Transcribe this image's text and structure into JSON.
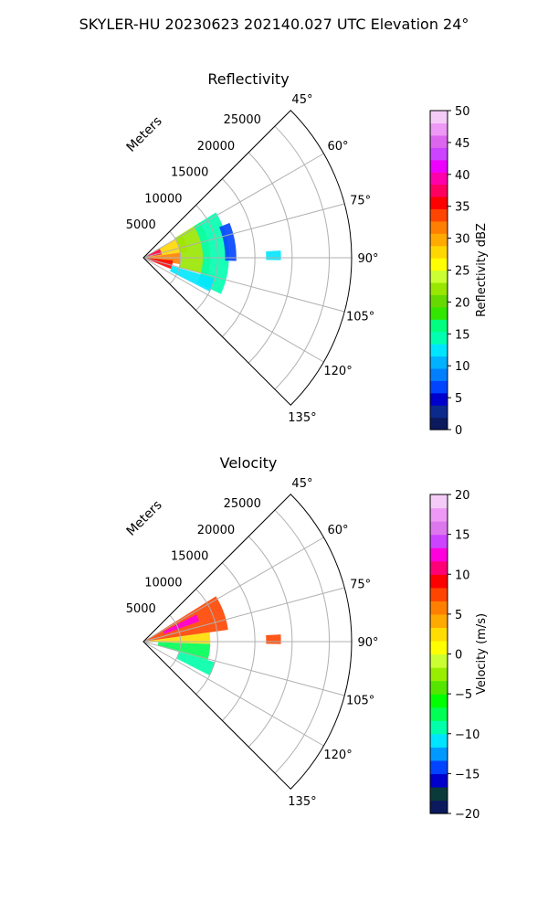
{
  "figure": {
    "title": "SKYLER-HU  20230623  202140.027 UTC Elevation 24°"
  },
  "chart_data": [
    {
      "type": "heatmap",
      "projection": "polar-sector",
      "title": "Reflectivity",
      "range_label": "Meters",
      "range_ticks": [
        5000,
        10000,
        15000,
        20000,
        25000
      ],
      "range_tick_labels": [
        "5000",
        "10000",
        "15000",
        "20000",
        "25000"
      ],
      "range_max": 28000,
      "azimuth_range_deg": [
        45,
        135
      ],
      "azimuth_ticks": [
        45,
        60,
        75,
        90,
        105,
        120,
        135
      ],
      "azimuth_tick_labels": [
        "45°",
        "60°",
        "75°",
        "90°",
        "105°",
        "120°",
        "135°"
      ],
      "grid": true,
      "colorbar": {
        "label": "Reflectivity dBZ",
        "min": 0,
        "max": 50,
        "ticks": [
          0,
          5,
          10,
          15,
          20,
          25,
          30,
          35,
          40,
          45,
          50
        ],
        "tick_labels": [
          "0",
          "5",
          "10",
          "15",
          "20",
          "25",
          "30",
          "35",
          "40",
          "45",
          "50"
        ],
        "colors": [
          "#0a1a5c",
          "#0b2a8c",
          "#0000cc",
          "#0044ff",
          "#007fff",
          "#00b2ff",
          "#00e5ff",
          "#00ffb0",
          "#00ff7f",
          "#33e600",
          "#66d900",
          "#99e600",
          "#ccff33",
          "#ffff00",
          "#ffd700",
          "#ffaa00",
          "#ff7f00",
          "#ff4500",
          "#ff0000",
          "#ff0060",
          "#ff00aa",
          "#ee00ff",
          "#cc44ff",
          "#dd66ee",
          "#ee99f5",
          "#f5ccf8"
        ]
      },
      "echo_regions": [
        {
          "az": [
            60,
            82
          ],
          "range": [
            0,
            6000
          ],
          "value": 28
        },
        {
          "az": [
            62,
            80
          ],
          "range": [
            500,
            2500
          ],
          "value": 38
        },
        {
          "az": [
            82,
            100
          ],
          "range": [
            0,
            5000
          ],
          "value": 32
        },
        {
          "az": [
            95,
            112
          ],
          "range": [
            500,
            4000
          ],
          "value": 36
        },
        {
          "az": [
            58,
            105
          ],
          "range": [
            5000,
            9000
          ],
          "value": 22
        },
        {
          "az": [
            58,
            115
          ],
          "range": [
            8000,
            11500
          ],
          "value": 15
        },
        {
          "az": [
            106,
            117
          ],
          "range": [
            4000,
            10000
          ],
          "value": 12
        },
        {
          "az": [
            68,
            92
          ],
          "range": [
            11000,
            12500
          ],
          "value": 6
        },
        {
          "az": [
            87,
            91
          ],
          "range": [
            16500,
            18500
          ],
          "value": 12
        }
      ]
    },
    {
      "type": "heatmap",
      "projection": "polar-sector",
      "title": "Velocity",
      "range_label": "Meters",
      "range_ticks": [
        5000,
        10000,
        15000,
        20000,
        25000
      ],
      "range_tick_labels": [
        "5000",
        "10000",
        "15000",
        "20000",
        "25000"
      ],
      "range_max": 28000,
      "azimuth_range_deg": [
        45,
        135
      ],
      "azimuth_ticks": [
        45,
        60,
        75,
        90,
        105,
        120,
        135
      ],
      "azimuth_tick_labels": [
        "45°",
        "60°",
        "75°",
        "90°",
        "105°",
        "120°",
        "135°"
      ],
      "grid": true,
      "colorbar": {
        "label": "Velocity (m/s)",
        "min": -20,
        "max": 20,
        "ticks": [
          -20,
          -15,
          -10,
          -5,
          0,
          5,
          10,
          15,
          20
        ],
        "tick_labels": [
          "−20",
          "−15",
          "−10",
          "−5",
          "0",
          "5",
          "10",
          "15",
          "20"
        ],
        "colors": [
          "#0a1a5c",
          "#0b3a3a",
          "#0000cc",
          "#0044ff",
          "#0099ff",
          "#00e5ff",
          "#00ffaa",
          "#00ff55",
          "#00ff00",
          "#55e600",
          "#99ee00",
          "#ccff33",
          "#ffff00",
          "#ffdd00",
          "#ffaa00",
          "#ff7f00",
          "#ff4500",
          "#ff0000",
          "#ff0077",
          "#ff00dd",
          "#cc44ff",
          "#dd77ee",
          "#ee99f5",
          "#f5ccf8"
        ]
      },
      "echo_regions": [
        {
          "az": [
            58,
            82
          ],
          "range": [
            0,
            11500
          ],
          "value": 7
        },
        {
          "az": [
            63,
            70
          ],
          "range": [
            3000,
            8000
          ],
          "value": 12
        },
        {
          "az": [
            82,
            92
          ],
          "range": [
            0,
            9000
          ],
          "value": 2
        },
        {
          "az": [
            92,
            106
          ],
          "range": [
            2000,
            9000
          ],
          "value": -8
        },
        {
          "az": [
            106,
            117
          ],
          "range": [
            5000,
            10000
          ],
          "value": -10
        },
        {
          "az": [
            87,
            91
          ],
          "range": [
            16500,
            18500
          ],
          "value": 7
        }
      ]
    }
  ]
}
